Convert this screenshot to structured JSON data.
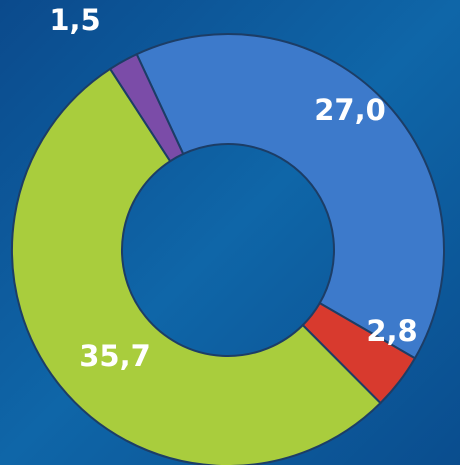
{
  "chart_data": {
    "type": "donut",
    "values": [
      27.0,
      2.8,
      35.7,
      1.5
    ],
    "value_labels": [
      "27,0",
      "2,8",
      "35,7",
      "1,5"
    ],
    "colors": [
      "#3d7acb",
      "#d83a2e",
      "#a9cd3d",
      "#7b4ca8"
    ]
  }
}
